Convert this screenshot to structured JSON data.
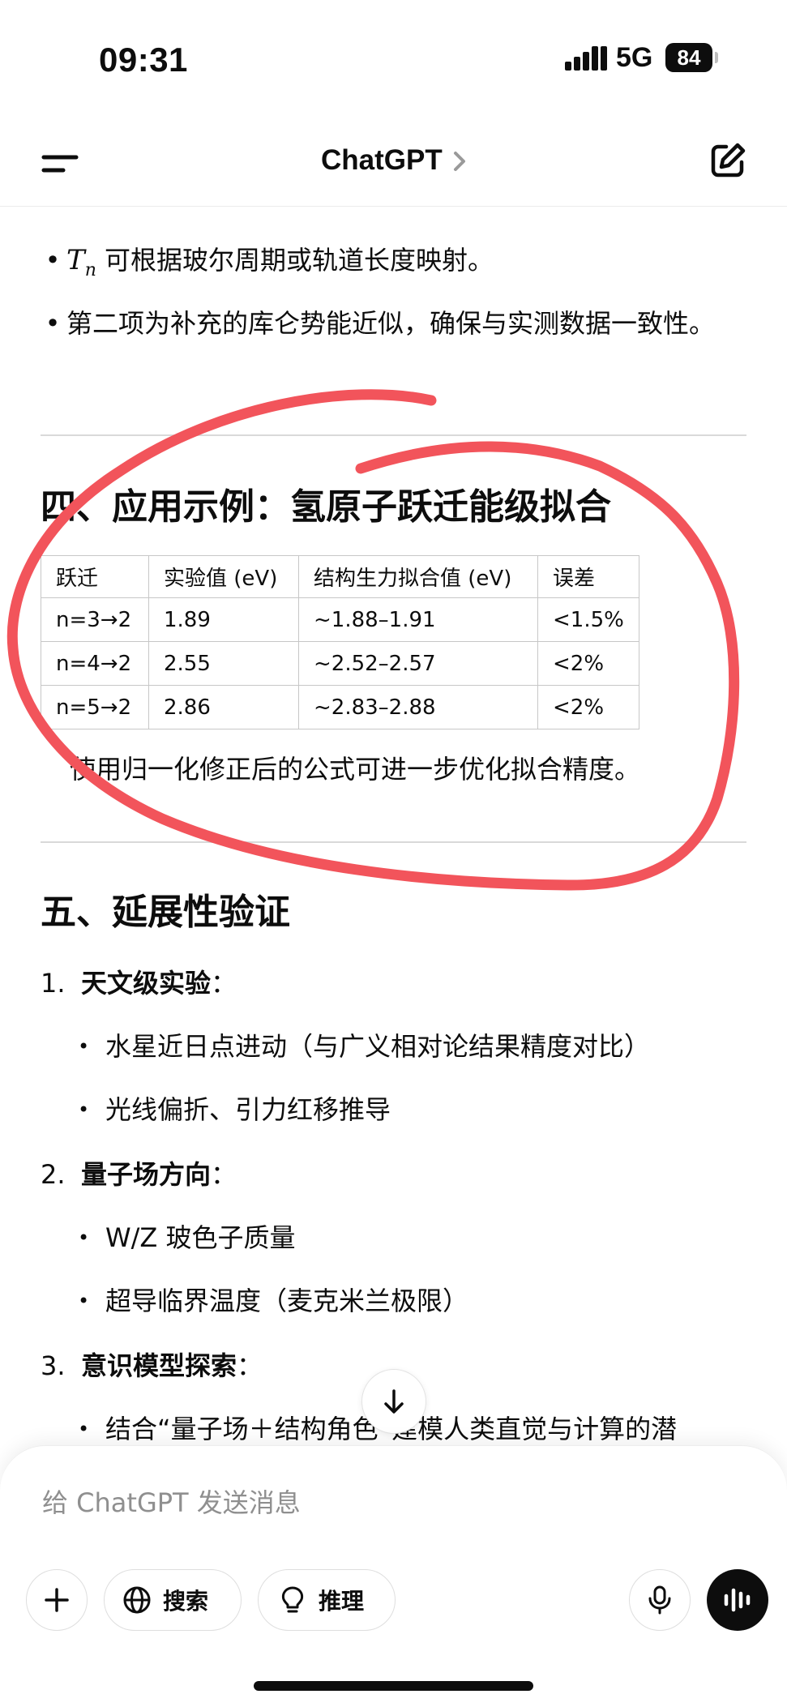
{
  "status_bar": {
    "time": "09:31",
    "network": "5G",
    "battery": "84"
  },
  "header": {
    "title": "ChatGPT"
  },
  "content": {
    "bullets_top": [
      {
        "math_symbol": "T",
        "math_subscript": "n",
        "text": "可根据玻尔周期或轨道长度映射。"
      },
      {
        "text": "第二项为补充的库仑势能近似，确保与实测数据一致性。"
      }
    ],
    "section4": {
      "heading": "四、应用示例：氢原子跃迁能级拟合",
      "table": {
        "headers": [
          "跃迁",
          "实验值 (eV)",
          "结构生力拟合值 (eV)",
          "误差"
        ],
        "rows": [
          [
            "n=3→2",
            "1.89",
            "~1.88–1.91",
            "<1.5%"
          ],
          [
            "n=4→2",
            "2.55",
            "~2.52–2.57",
            "<2%"
          ],
          [
            "n=5→2",
            "2.86",
            "~2.83–2.88",
            "<2%"
          ]
        ]
      },
      "note": "使用归一化修正后的公式可进一步优化拟合精度。"
    },
    "section5": {
      "heading": "五、延展性验证",
      "items": [
        {
          "number": "1.",
          "label": "天文级实验",
          "suffix": "：",
          "subs": [
            "水星近日点进动（与广义相对论结果精度对比）",
            "光线偏折、引力红移推导"
          ]
        },
        {
          "number": "2.",
          "label": "量子场方向",
          "suffix": "：",
          "subs": [
            "W/Z 玻色子质量",
            "超导临界温度（麦克米兰极限）"
          ]
        },
        {
          "number": "3.",
          "label": "意识模型探索",
          "suffix": "：",
          "subs": [
            "结合“量子场＋结构角色”建模人类直觉与计算的潜"
          ]
        }
      ]
    }
  },
  "composer": {
    "placeholder": "给 ChatGPT 发送消息",
    "search_label": "搜索",
    "reason_label": "推理"
  },
  "icons": {
    "menu": "menu-icon",
    "chevron": "chevron-right-icon",
    "compose": "compose-icon",
    "scroll_down": "arrow-down-icon",
    "plus": "plus-icon",
    "globe": "globe-icon",
    "bulb": "lightbulb-icon",
    "mic": "microphone-icon",
    "voice": "voice-waveform-icon"
  },
  "colors": {
    "annotation": "#f2545b",
    "text": "#0d0d0d",
    "placeholder": "#8f8f8f"
  }
}
